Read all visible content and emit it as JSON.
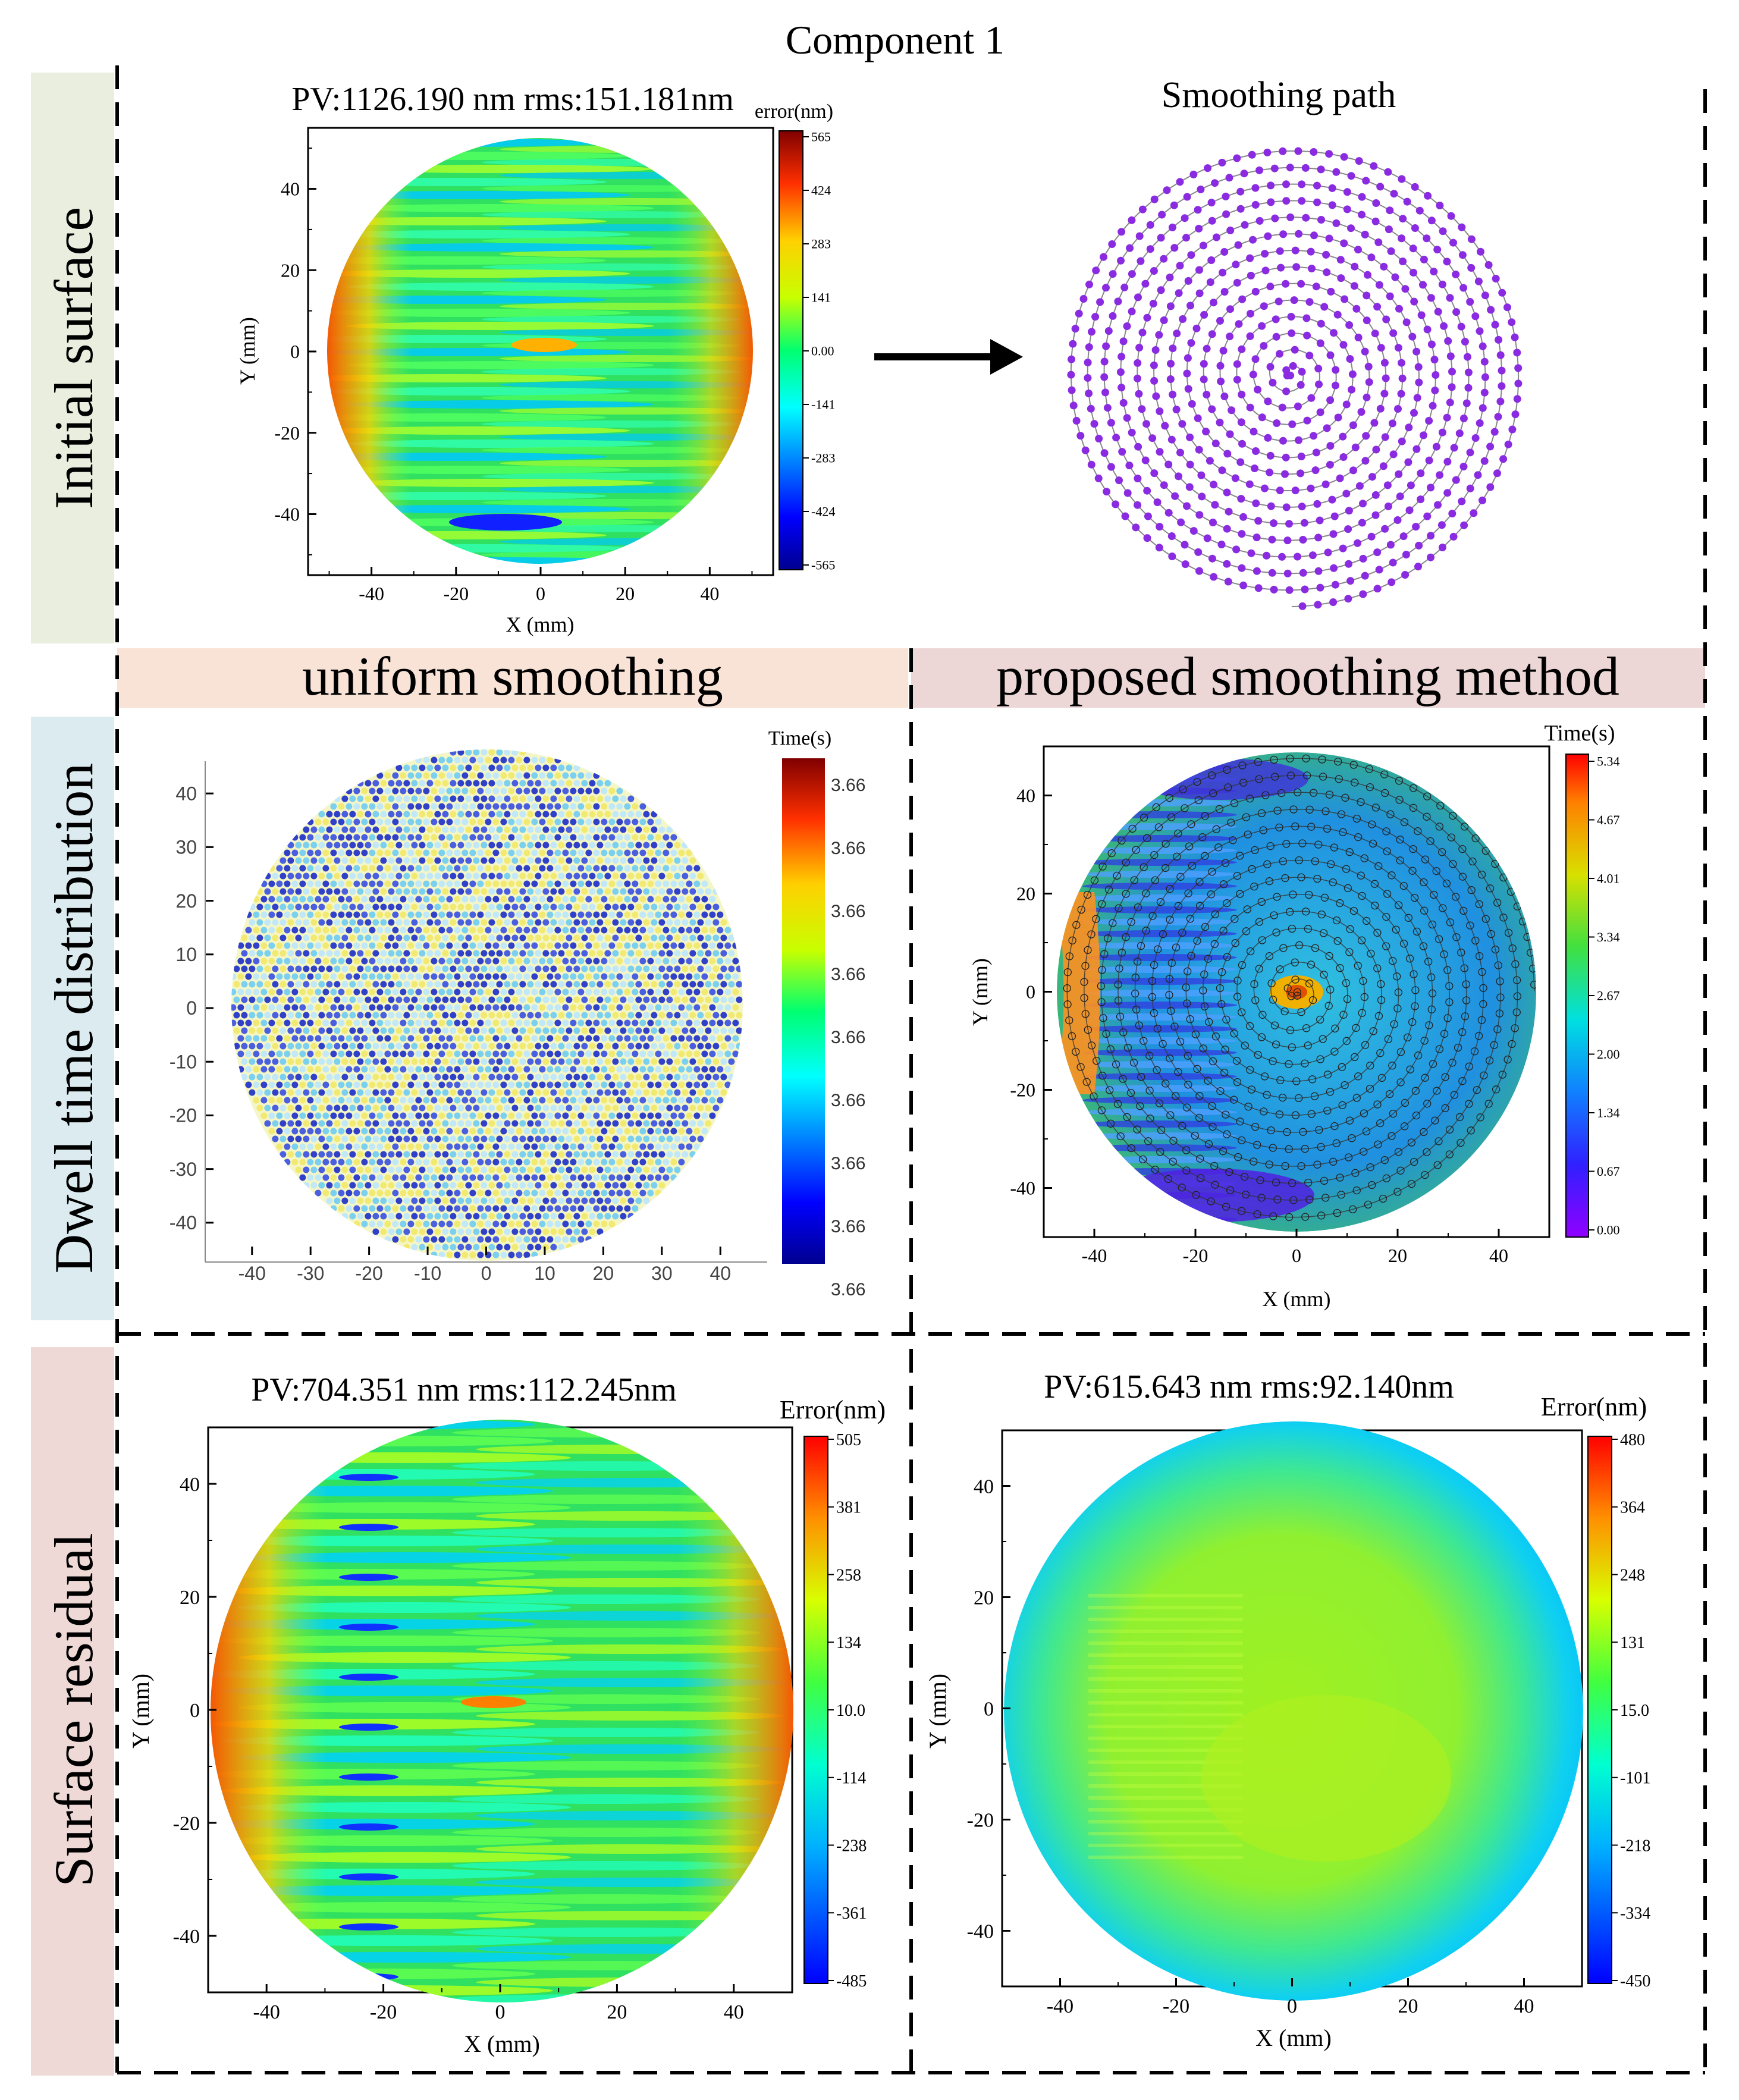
{
  "figure": {
    "title": "Component 1"
  },
  "row_labels": [
    "Initial surface",
    "Dwell time distribution",
    "Surface residual"
  ],
  "column_headers": {
    "left": "uniform smoothing",
    "right": "proposed smoothing method"
  },
  "colors": {
    "row1_band": "#e9eedf",
    "row2_band": "#dcebef",
    "row3_band": "#eed9d6",
    "col_left_band": "#f8e3d6",
    "col_right_band": "#ecd6d6",
    "path_dot": "#8a2be2",
    "arrow": "#000000"
  },
  "chart_data": [
    {
      "id": "initial_surface",
      "type": "heatmap",
      "title": "PV:1126.190 nm rms:151.181nm",
      "xlabel": "X (mm)",
      "ylabel": "Y (mm)",
      "xlim": [
        -55,
        55
      ],
      "ylim": [
        -55,
        55
      ],
      "xticks": [
        -40,
        -20,
        0,
        20,
        40
      ],
      "yticks": [
        -40,
        -20,
        0,
        20,
        40
      ],
      "colorbar_label": "error(nm)",
      "colorbar_ticks": [
        "565",
        "424",
        "283",
        "141",
        "0.00",
        "-141",
        "-283",
        "-424",
        "-565"
      ],
      "description_fields": {
        "aperture_radius_mm": 50
      }
    },
    {
      "id": "smoothing_path",
      "type": "scatter",
      "title": "Smoothing path",
      "spiral_turns": 14
    },
    {
      "id": "dwell_uniform",
      "type": "heatmap",
      "xticks": [
        -40,
        -30,
        -20,
        -10,
        0,
        10,
        20,
        30,
        40
      ],
      "yticks": [
        40,
        30,
        20,
        10,
        0,
        -10,
        -20,
        -30,
        -40
      ],
      "xlim": [
        -48,
        48
      ],
      "ylim": [
        -46,
        46
      ],
      "colorbar_label": "Time(s)",
      "colorbar_ticks": [
        "3.66",
        "3.66",
        "3.66",
        "3.66",
        "3.66",
        "3.66",
        "3.66",
        "3.66",
        "3.66"
      ]
    },
    {
      "id": "dwell_proposed",
      "type": "heatmap",
      "xlabel": "X (mm)",
      "ylabel": "Y (mm)",
      "xlim": [
        -50,
        50
      ],
      "ylim": [
        -50,
        50
      ],
      "xticks": [
        -40,
        -20,
        0,
        20,
        40
      ],
      "yticks": [
        -40,
        -20,
        0,
        20,
        40
      ],
      "colorbar_label": "Time(s)",
      "colorbar_ticks": [
        "5.34",
        "4.67",
        "4.01",
        "3.34",
        "2.67",
        "2.00",
        "1.34",
        "0.67",
        "0.00"
      ]
    },
    {
      "id": "residual_uniform",
      "type": "heatmap",
      "title": "PV:704.351 nm rms:112.245nm",
      "xlabel": "X (mm)",
      "ylabel": "Y (mm)",
      "xlim": [
        -50,
        50
      ],
      "ylim": [
        -50,
        50
      ],
      "xticks": [
        -40,
        -20,
        0,
        20,
        40
      ],
      "yticks": [
        -40,
        -20,
        0,
        20,
        40
      ],
      "colorbar_label": "Error(nm)",
      "colorbar_ticks": [
        "505",
        "381",
        "258",
        "134",
        "10.0",
        "-114",
        "-238",
        "-361",
        "-485"
      ]
    },
    {
      "id": "residual_proposed",
      "type": "heatmap",
      "title": "PV:615.643 nm rms:92.140nm",
      "xlabel": "X (mm)",
      "ylabel": "Y (mm)",
      "xlim": [
        -50,
        50
      ],
      "ylim": [
        -50,
        50
      ],
      "xticks": [
        -40,
        -20,
        0,
        20,
        40
      ],
      "yticks": [
        -40,
        -20,
        0,
        20,
        40
      ],
      "colorbar_label": "Error(nm)",
      "colorbar_ticks": [
        "480",
        "364",
        "248",
        "131",
        "15.0",
        "-101",
        "-218",
        "-334",
        "-450"
      ]
    }
  ]
}
